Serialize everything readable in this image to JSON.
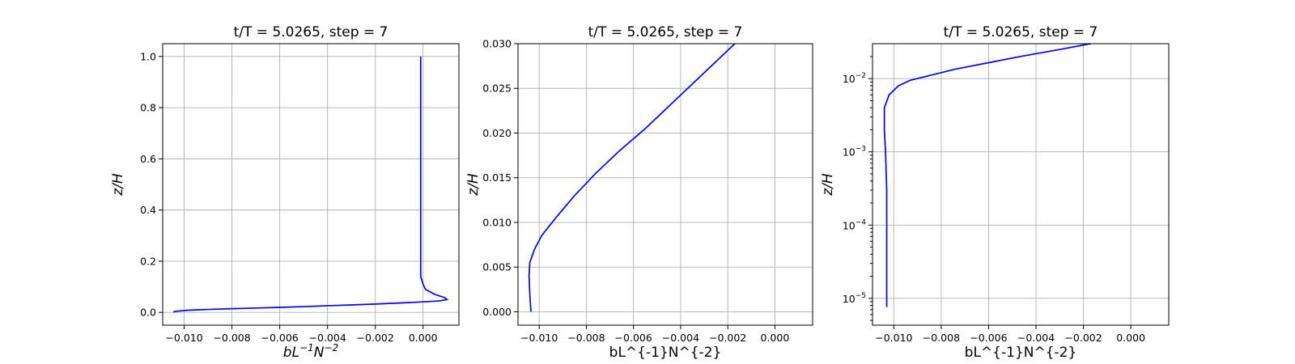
{
  "chart_data": [
    {
      "type": "line",
      "title": "t/T = 5.0265, step = 7",
      "xlabel_parts": [
        {
          "t": "bL",
          "sup": false
        },
        {
          "t": "−1",
          "sup": true
        },
        {
          "t": "N",
          "sup": false
        },
        {
          "t": "−2",
          "sup": true
        }
      ],
      "ylabel": "z/H",
      "yscale": "linear",
      "xlim": [
        -0.0109,
        0.0015
      ],
      "ylim": [
        -0.05,
        1.05
      ],
      "grid": true,
      "xticks": [
        {
          "v": -0.01,
          "label": "−0.010"
        },
        {
          "v": -0.008,
          "label": "−0.008"
        },
        {
          "v": -0.006,
          "label": "−0.006"
        },
        {
          "v": -0.004,
          "label": "−0.004"
        },
        {
          "v": -0.002,
          "label": "−0.002"
        },
        {
          "v": 0.0,
          "label": "0.000"
        }
      ],
      "yticks": [
        {
          "v": 0.0,
          "label": "0.0"
        },
        {
          "v": 0.2,
          "label": "0.2"
        },
        {
          "v": 0.4,
          "label": "0.4"
        },
        {
          "v": 0.6,
          "label": "0.6"
        },
        {
          "v": 0.8,
          "label": "0.8"
        },
        {
          "v": 1.0,
          "label": "1.0"
        }
      ],
      "series": [
        {
          "color": "#0000ff",
          "points": [
            [
              -0.01045,
              0.001
            ],
            [
              -0.0104,
              0.0035
            ],
            [
              -0.0102,
              0.0055
            ],
            [
              -0.0099,
              0.008
            ],
            [
              -0.009,
              0.0115
            ],
            [
              -0.008,
              0.0145
            ],
            [
              -0.007,
              0.017
            ],
            [
              -0.006,
              0.0195
            ],
            [
              -0.005,
              0.0225
            ],
            [
              -0.004,
              0.026
            ],
            [
              -0.003,
              0.029
            ],
            [
              -0.002,
              0.0325
            ],
            [
              -0.001,
              0.0365
            ],
            [
              0.0,
              0.041
            ],
            [
              0.0007,
              0.045
            ],
            [
              0.001,
              0.05
            ],
            [
              0.0009,
              0.058
            ],
            [
              0.0005,
              0.07
            ],
            [
              0.0001,
              0.09
            ],
            [
              0.0,
              0.11
            ],
            [
              -0.0001,
              0.14
            ],
            [
              -0.0001,
              0.3
            ],
            [
              -0.0001,
              0.6
            ],
            [
              -0.0001,
              1.0
            ]
          ]
        }
      ]
    },
    {
      "type": "line",
      "title": "t/T = 5.0265, step = 7",
      "xlabel": "bL^{-1}N^{-2}",
      "ylabel": "z/H",
      "yscale": "linear",
      "xlim": [
        -0.0109,
        0.0016
      ],
      "ylim": [
        -0.0015,
        0.03
      ],
      "grid": true,
      "xticks": [
        {
          "v": -0.01,
          "label": "−0.010"
        },
        {
          "v": -0.008,
          "label": "−0.008"
        },
        {
          "v": -0.006,
          "label": "−0.006"
        },
        {
          "v": -0.004,
          "label": "−0.004"
        },
        {
          "v": -0.002,
          "label": "−0.002"
        },
        {
          "v": 0.0,
          "label": "0.000"
        }
      ],
      "yticks": [
        {
          "v": 0.0,
          "label": "0.000"
        },
        {
          "v": 0.005,
          "label": "0.005"
        },
        {
          "v": 0.01,
          "label": "0.010"
        },
        {
          "v": 0.015,
          "label": "0.015"
        },
        {
          "v": 0.02,
          "label": "0.020"
        },
        {
          "v": 0.025,
          "label": "0.025"
        },
        {
          "v": 0.03,
          "label": "0.030"
        }
      ],
      "series": [
        {
          "color": "#0000ff",
          "points": [
            [
              -0.01035,
              0.0
            ],
            [
              -0.0104,
              0.002
            ],
            [
              -0.01043,
              0.004
            ],
            [
              -0.0104,
              0.0055
            ],
            [
              -0.0102,
              0.007
            ],
            [
              -0.0099,
              0.0085
            ],
            [
              -0.0093,
              0.0105
            ],
            [
              -0.0085,
              0.013
            ],
            [
              -0.0076,
              0.0155
            ],
            [
              -0.0066,
              0.018
            ],
            [
              -0.0055,
              0.0205
            ],
            [
              -0.0045,
              0.023
            ],
            [
              -0.0035,
              0.0255
            ],
            [
              -0.0025,
              0.028
            ],
            [
              -0.0017,
              0.03
            ]
          ]
        }
      ]
    },
    {
      "type": "line",
      "title": "t/T = 5.0265, step = 7",
      "xlabel": "bL^{-1}N^{-2}",
      "ylabel": "z/H",
      "yscale": "log",
      "xlim": [
        -0.0109,
        0.0016
      ],
      "ylim": [
        4.3e-06,
        0.03
      ],
      "grid": true,
      "xticks": [
        {
          "v": -0.01,
          "label": "−0.010"
        },
        {
          "v": -0.008,
          "label": "−0.008"
        },
        {
          "v": -0.006,
          "label": "−0.006"
        },
        {
          "v": -0.004,
          "label": "−0.004"
        },
        {
          "v": -0.002,
          "label": "−0.002"
        },
        {
          "v": 0.0,
          "label": "0.000"
        }
      ],
      "yticks": [
        {
          "v": 1e-05,
          "base": "10",
          "exp": "−5"
        },
        {
          "v": 0.0001,
          "base": "10",
          "exp": "−4"
        },
        {
          "v": 0.001,
          "base": "10",
          "exp": "−3"
        },
        {
          "v": 0.01,
          "base": "10",
          "exp": "−2"
        }
      ],
      "series": [
        {
          "color": "#0000ff",
          "points": [
            [
              -0.0103,
              7.6e-06
            ],
            [
              -0.0103,
              3e-05
            ],
            [
              -0.0103,
              0.0001
            ],
            [
              -0.0103,
              0.0003
            ],
            [
              -0.01035,
              0.001
            ],
            [
              -0.0104,
              0.002
            ],
            [
              -0.0104,
              0.004
            ],
            [
              -0.0102,
              0.006
            ],
            [
              -0.0098,
              0.008
            ],
            [
              -0.0093,
              0.0095
            ],
            [
              -0.0085,
              0.011
            ],
            [
              -0.0074,
              0.0135
            ],
            [
              -0.006,
              0.0165
            ],
            [
              -0.0045,
              0.0205
            ],
            [
              -0.003,
              0.025
            ],
            [
              -0.0017,
              0.03
            ]
          ]
        }
      ]
    }
  ]
}
